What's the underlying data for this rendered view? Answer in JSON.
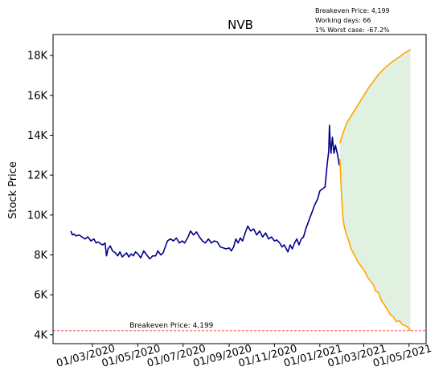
{
  "chart_data": {
    "type": "line",
    "title": "NVB",
    "xlabel": "",
    "ylabel": "Stock Price",
    "x_range": [
      "2020-01-08",
      "2021-05-24"
    ],
    "ylim": [
      3550,
      19050
    ],
    "y_ticks": [
      4000,
      6000,
      8000,
      10000,
      12000,
      14000,
      16000,
      18000
    ],
    "y_tick_labels": [
      "4K",
      "6K",
      "8K",
      "10K",
      "12K",
      "14K",
      "16K",
      "18K"
    ],
    "x_ticks": [
      "2020-03-01",
      "2020-05-01",
      "2020-07-01",
      "2020-09-01",
      "2020-11-01",
      "2021-01-01",
      "2021-03-01",
      "2021-05-01"
    ],
    "x_tick_labels": [
      "01/03/2020",
      "01/05/2020",
      "01/07/2020",
      "01/09/2020",
      "01/11/2020",
      "01/01/2021",
      "01/03/2021",
      "01/05/2021"
    ],
    "grid": false,
    "series": [
      {
        "color": "#00008b",
        "points": [
          [
            "2020-02-01",
            9200
          ],
          [
            "2020-02-03",
            9000
          ],
          [
            "2020-02-05",
            9050
          ],
          [
            "2020-02-08",
            8950
          ],
          [
            "2020-02-12",
            9000
          ],
          [
            "2020-02-16",
            8900
          ],
          [
            "2020-02-20",
            8800
          ],
          [
            "2020-02-24",
            8900
          ],
          [
            "2020-02-28",
            8700
          ],
          [
            "2020-03-03",
            8800
          ],
          [
            "2020-03-06",
            8600
          ],
          [
            "2020-03-09",
            8650
          ],
          [
            "2020-03-12",
            8550
          ],
          [
            "2020-03-15",
            8500
          ],
          [
            "2020-03-18",
            8600
          ],
          [
            "2020-03-20",
            7950
          ],
          [
            "2020-03-22",
            8300
          ],
          [
            "2020-03-25",
            8450
          ],
          [
            "2020-03-28",
            8200
          ],
          [
            "2020-04-01",
            8100
          ],
          [
            "2020-04-04",
            7950
          ],
          [
            "2020-04-07",
            8150
          ],
          [
            "2020-04-10",
            7900
          ],
          [
            "2020-04-13",
            8000
          ],
          [
            "2020-04-16",
            8100
          ],
          [
            "2020-04-19",
            7900
          ],
          [
            "2020-04-22",
            8050
          ],
          [
            "2020-04-25",
            7950
          ],
          [
            "2020-04-28",
            8150
          ],
          [
            "2020-05-01",
            8050
          ],
          [
            "2020-05-05",
            7850
          ],
          [
            "2020-05-09",
            8200
          ],
          [
            "2020-05-13",
            8000
          ],
          [
            "2020-05-17",
            7800
          ],
          [
            "2020-05-21",
            7950
          ],
          [
            "2020-05-25",
            7950
          ],
          [
            "2020-05-28",
            8200
          ],
          [
            "2020-06-01",
            8000
          ],
          [
            "2020-06-04",
            8100
          ],
          [
            "2020-06-07",
            8400
          ],
          [
            "2020-06-10",
            8700
          ],
          [
            "2020-06-14",
            8800
          ],
          [
            "2020-06-18",
            8700
          ],
          [
            "2020-06-22",
            8850
          ],
          [
            "2020-06-26",
            8600
          ],
          [
            "2020-06-30",
            8700
          ],
          [
            "2020-07-03",
            8600
          ],
          [
            "2020-07-07",
            8850
          ],
          [
            "2020-07-11",
            9200
          ],
          [
            "2020-07-15",
            9000
          ],
          [
            "2020-07-19",
            9150
          ],
          [
            "2020-07-23",
            8900
          ],
          [
            "2020-07-27",
            8700
          ],
          [
            "2020-07-31",
            8600
          ],
          [
            "2020-08-04",
            8800
          ],
          [
            "2020-08-08",
            8600
          ],
          [
            "2020-08-12",
            8700
          ],
          [
            "2020-08-16",
            8650
          ],
          [
            "2020-08-20",
            8400
          ],
          [
            "2020-08-24",
            8350
          ],
          [
            "2020-08-28",
            8300
          ],
          [
            "2020-09-01",
            8350
          ],
          [
            "2020-09-04",
            8200
          ],
          [
            "2020-09-07",
            8400
          ],
          [
            "2020-09-10",
            8800
          ],
          [
            "2020-09-13",
            8600
          ],
          [
            "2020-09-16",
            8850
          ],
          [
            "2020-09-19",
            8700
          ],
          [
            "2020-09-22",
            9050
          ],
          [
            "2020-09-26",
            9450
          ],
          [
            "2020-09-30",
            9200
          ],
          [
            "2020-10-04",
            9300
          ],
          [
            "2020-10-08",
            9000
          ],
          [
            "2020-10-12",
            9200
          ],
          [
            "2020-10-16",
            8900
          ],
          [
            "2020-10-20",
            9100
          ],
          [
            "2020-10-24",
            8800
          ],
          [
            "2020-10-28",
            8900
          ],
          [
            "2020-11-01",
            8700
          ],
          [
            "2020-11-04",
            8750
          ],
          [
            "2020-11-08",
            8600
          ],
          [
            "2020-11-11",
            8400
          ],
          [
            "2020-11-14",
            8500
          ],
          [
            "2020-11-17",
            8300
          ],
          [
            "2020-11-19",
            8150
          ],
          [
            "2020-11-22",
            8500
          ],
          [
            "2020-11-25",
            8300
          ],
          [
            "2020-11-28",
            8600
          ],
          [
            "2020-12-01",
            8800
          ],
          [
            "2020-12-04",
            8500
          ],
          [
            "2020-12-07",
            8800
          ],
          [
            "2020-12-10",
            8900
          ],
          [
            "2020-12-13",
            9300
          ],
          [
            "2020-12-17",
            9700
          ],
          [
            "2020-12-21",
            10100
          ],
          [
            "2020-12-25",
            10500
          ],
          [
            "2020-12-29",
            10800
          ],
          [
            "2021-01-01",
            11200
          ],
          [
            "2021-01-04",
            11300
          ],
          [
            "2021-01-08",
            11400
          ],
          [
            "2021-01-11",
            12600
          ],
          [
            "2021-01-13",
            13200
          ],
          [
            "2021-01-14",
            14500
          ],
          [
            "2021-01-15",
            13600
          ],
          [
            "2021-01-16",
            13100
          ],
          [
            "2021-01-18",
            13900
          ],
          [
            "2021-01-20",
            13100
          ],
          [
            "2021-01-22",
            13500
          ],
          [
            "2021-01-25",
            13000
          ],
          [
            "2021-01-27",
            12500
          ]
        ]
      },
      {
        "color": "#ffa500",
        "points": [
          [
            "2021-01-28",
            13600
          ],
          [
            "2021-02-02",
            14200
          ],
          [
            "2021-02-06",
            14600
          ],
          [
            "2021-02-11",
            14900
          ],
          [
            "2021-02-16",
            15200
          ],
          [
            "2021-02-21",
            15500
          ],
          [
            "2021-02-26",
            15800
          ],
          [
            "2021-03-03",
            16100
          ],
          [
            "2021-03-08",
            16400
          ],
          [
            "2021-03-14",
            16700
          ],
          [
            "2021-03-20",
            17000
          ],
          [
            "2021-03-26",
            17250
          ],
          [
            "2021-04-01",
            17450
          ],
          [
            "2021-04-07",
            17650
          ],
          [
            "2021-04-13",
            17800
          ],
          [
            "2021-04-19",
            17950
          ],
          [
            "2021-04-24",
            18100
          ],
          [
            "2021-04-29",
            18200
          ],
          [
            "2021-05-03",
            18300
          ]
        ]
      },
      {
        "color": "#ffa500",
        "points": [
          [
            "2021-01-28",
            12800
          ],
          [
            "2021-01-30",
            11200
          ],
          [
            "2021-02-01",
            9900
          ],
          [
            "2021-02-03",
            9400
          ],
          [
            "2021-02-06",
            9000
          ],
          [
            "2021-02-09",
            8700
          ],
          [
            "2021-02-12",
            8300
          ],
          [
            "2021-02-15",
            8100
          ],
          [
            "2021-02-18",
            7900
          ],
          [
            "2021-02-22",
            7600
          ],
          [
            "2021-02-26",
            7400
          ],
          [
            "2021-03-02",
            7200
          ],
          [
            "2021-03-06",
            6900
          ],
          [
            "2021-03-10",
            6700
          ],
          [
            "2021-03-14",
            6500
          ],
          [
            "2021-03-17",
            6200
          ],
          [
            "2021-03-21",
            6100
          ],
          [
            "2021-03-25",
            5700
          ],
          [
            "2021-03-29",
            5500
          ],
          [
            "2021-04-02",
            5250
          ],
          [
            "2021-04-06",
            5000
          ],
          [
            "2021-04-10",
            4900
          ],
          [
            "2021-04-14",
            4650
          ],
          [
            "2021-04-18",
            4700
          ],
          [
            "2021-04-22",
            4500
          ],
          [
            "2021-04-26",
            4450
          ],
          [
            "2021-04-30",
            4350
          ],
          [
            "2021-05-03",
            4200
          ]
        ]
      }
    ],
    "shaded_band_color": "#c8e6c9",
    "breakeven": {
      "value": 4199,
      "label": "Breakeven Price: 4,199",
      "color": "#ff0000"
    },
    "info_lines": [
      "Breakeven Price: 4,199",
      "Working days: 66",
      "1% Worst case: -67.2%"
    ]
  }
}
